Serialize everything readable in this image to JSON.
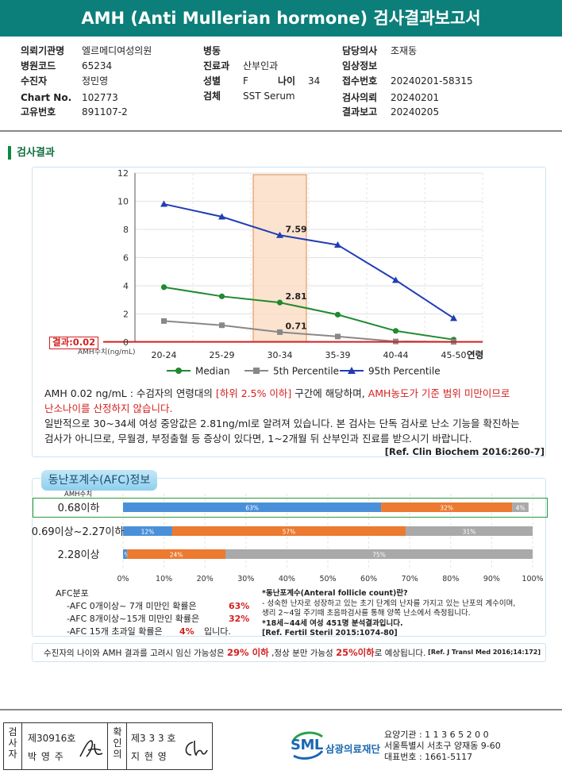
{
  "header": {
    "title": "AMH (Anti Mullerian hormone) 검사결과보고서"
  },
  "patient_info": {
    "institution_label": "의뢰기관명",
    "institution": "엘르메디여성의원",
    "hospital_code_label": "병원코드",
    "hospital_code": "65234",
    "patient_label": "수진자",
    "patient": "정민영",
    "chart_label": "Chart No.",
    "chart": "102773",
    "unique_label": "고유번호",
    "unique": "891107-2",
    "ward_label": "병동",
    "ward": "",
    "department_label": "진료과",
    "department": "산부인과",
    "sex_label": "성별",
    "sex": "F",
    "age_label": "나이",
    "age": "34",
    "specimen_label": "검체",
    "specimen": "SST Serum",
    "doctor_label": "담당의사",
    "doctor": "조재동",
    "clinical_label": "임상정보",
    "clinical": "",
    "receipt_label": "접수번호",
    "receipt": "20240201-58315",
    "request_label": "검사의뢰",
    "request": "20240201",
    "report_label": "결과보고",
    "report": "20240205"
  },
  "section_title": "검사결과",
  "chart_data": {
    "type": "line",
    "categories": [
      "20-24",
      "25-29",
      "30-34",
      "35-39",
      "40-44",
      "45-50"
    ],
    "x_axis_suffix": "연령",
    "ylim": [
      0,
      12
    ],
    "yticks": [
      "0",
      "2",
      "4",
      "6",
      "8",
      "10",
      "12"
    ],
    "ylabel": "AMH수치(ng/mL)",
    "highlight_category": "30-34",
    "result_label": "결과:0.02",
    "result_value": 0.02,
    "legend_position": "bottom",
    "series": [
      {
        "name": "Median",
        "color": "#1f8a2e",
        "marker": "circle",
        "values": [
          3.9,
          3.25,
          2.81,
          1.95,
          0.8,
          0.18
        ],
        "label_index": 2,
        "label": "2.81"
      },
      {
        "name": "5th Percentile",
        "color": "#888888",
        "marker": "square",
        "values": [
          1.5,
          1.2,
          0.71,
          0.4,
          0.05,
          0.02
        ],
        "label_index": 2,
        "label": "0.71"
      },
      {
        "name": "95th Percentile",
        "color": "#1f3db5",
        "marker": "triangle",
        "values": [
          9.8,
          8.9,
          7.59,
          6.9,
          4.4,
          1.7
        ],
        "label_index": 2,
        "label": "7.59"
      }
    ]
  },
  "description": {
    "p1_a": "AMH  0.02 ng/mL : 수검자의 연령대의 ",
    "p1_red1": "[하위 2.5% 이하]",
    "p1_b": " 구간에 해당하며, ",
    "p1_red2": "AMH농도가 기준 범위 미만이므로",
    "p1_red3": "난소나이를 산정하지 않습니다.",
    "p2_line1": "일반적으로 30~34세 여성 중앙값은 2.81ng/ml로 알려져 있습니다. 본 검사는 단독 검사로 난소 기능을 확진하는",
    "p2_line2": "검사가 아니므로, 무월경, 부정출혈 등 증상이 있다면, 1~2개월 뒤 산부인과 진료를 받으시기 바랍니다.",
    "ref": "[Ref. Clin Biochem 2016:260-7]"
  },
  "afc": {
    "tab_label": "동난포계수(AFC)정보",
    "column_header": "AMH수치",
    "colors": {
      "lt7": "#4a90d9",
      "8to15": "#ec7a30",
      "gt15": "#a9a9a9"
    },
    "rows": [
      {
        "label": "0.68이하",
        "segments": [
          63,
          32,
          4
        ],
        "labels": [
          "63%",
          "32%",
          "4%"
        ],
        "highlighted": true
      },
      {
        "label": "0.69이상~2.27이하",
        "segments": [
          12,
          57,
          31
        ],
        "labels": [
          "12%",
          "57%",
          "31%"
        ],
        "highlighted": false
      },
      {
        "label": "2.28이상",
        "segments": [
          1,
          24,
          75
        ],
        "labels": [
          "1%",
          "24%",
          "75%"
        ],
        "highlighted": false
      }
    ],
    "axis_ticks": [
      "0%",
      "10%",
      "20%",
      "30%",
      "40%",
      "50%",
      "60%",
      "70%",
      "80%",
      "90%",
      "100%"
    ],
    "summary_title": "AFC분포",
    "summary": [
      {
        "text": "-AFC  0개이상~ 7개 미만인 확률은",
        "pct": "63%",
        "tail": ""
      },
      {
        "text": "-AFC  8개이상~15개 미만인 확률은",
        "pct": "32%",
        "tail": ""
      },
      {
        "text": "-AFC  15개 초과일 확률은",
        "pct": "4%",
        "tail": "입니다."
      }
    ],
    "notes": [
      "*동난포계수(Anteral follicle count)란?",
      "- 성숙한 난자로 성장하고 있는 초기 단계의 난자를 가지고 있는 난포의 계수이며,",
      "   생리 2~4일 주기때 초음파검사를 통해 양쪽 난소에서 측정됩니다.",
      "*18세~44세 여성 451명 분석결과입니다.",
      "[Ref. Fertil Steril 2015:1074-80]"
    ]
  },
  "prediction": {
    "a": "수진자의  나이와 AMH 결과를 고려시 임신 가능성은  ",
    "pct1": "29% 이하",
    "b": " ,정상 분만 가능성   ",
    "pct2": "25%이하",
    "c": "로 예상됩니다.",
    "ref": "[Ref. J Transl Med 2016;14:172]"
  },
  "signatures": {
    "examiner_label": [
      "검",
      "사",
      "자"
    ],
    "examiner_no": "제30916호",
    "examiner_name": "박 영 주",
    "confirm_label": [
      "확",
      "인",
      "의"
    ],
    "confirm_no": "제3 3 3 호",
    "confirm_name": "지 현 영"
  },
  "organization": {
    "logo_text": "SML",
    "name": "삼광의료재단",
    "code": "요양기관 : 1 1 3 6 5 2 0 0",
    "address": "서울특별시 서초구 양재동 9-60",
    "phone": "대표번호 : 1661-5117"
  }
}
